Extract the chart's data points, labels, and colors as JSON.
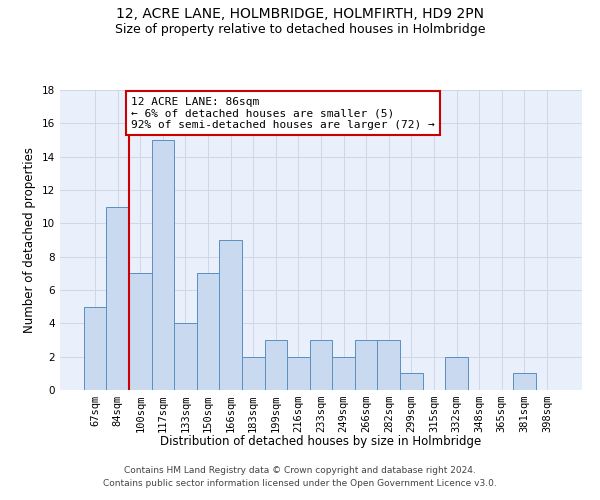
{
  "title": "12, ACRE LANE, HOLMBRIDGE, HOLMFIRTH, HD9 2PN",
  "subtitle": "Size of property relative to detached houses in Holmbridge",
  "xlabel": "Distribution of detached houses by size in Holmbridge",
  "ylabel": "Number of detached properties",
  "categories": [
    "67sqm",
    "84sqm",
    "100sqm",
    "117sqm",
    "133sqm",
    "150sqm",
    "166sqm",
    "183sqm",
    "199sqm",
    "216sqm",
    "233sqm",
    "249sqm",
    "266sqm",
    "282sqm",
    "299sqm",
    "315sqm",
    "332sqm",
    "348sqm",
    "365sqm",
    "381sqm",
    "398sqm"
  ],
  "values": [
    5,
    11,
    7,
    15,
    4,
    7,
    9,
    2,
    3,
    2,
    3,
    2,
    3,
    3,
    1,
    0,
    2,
    0,
    0,
    1,
    0
  ],
  "bar_color": "#c9d9ef",
  "bar_edge_color": "#5a8fc3",
  "red_line_x": 1.5,
  "highlight_color": "#cc0000",
  "annotation_text": "12 ACRE LANE: 86sqm\n← 6% of detached houses are smaller (5)\n92% of semi-detached houses are larger (72) →",
  "annotation_box_color": "#ffffff",
  "annotation_box_edge_color": "#cc0000",
  "ylim": [
    0,
    18
  ],
  "yticks": [
    0,
    2,
    4,
    6,
    8,
    10,
    12,
    14,
    16,
    18
  ],
  "grid_color": "#d0d8e8",
  "background_color": "#eaf0fb",
  "footer_text": "Contains HM Land Registry data © Crown copyright and database right 2024.\nContains public sector information licensed under the Open Government Licence v3.0.",
  "title_fontsize": 10,
  "subtitle_fontsize": 9,
  "axis_label_fontsize": 8.5,
  "tick_fontsize": 7.5,
  "annotation_fontsize": 8,
  "footer_fontsize": 6.5
}
